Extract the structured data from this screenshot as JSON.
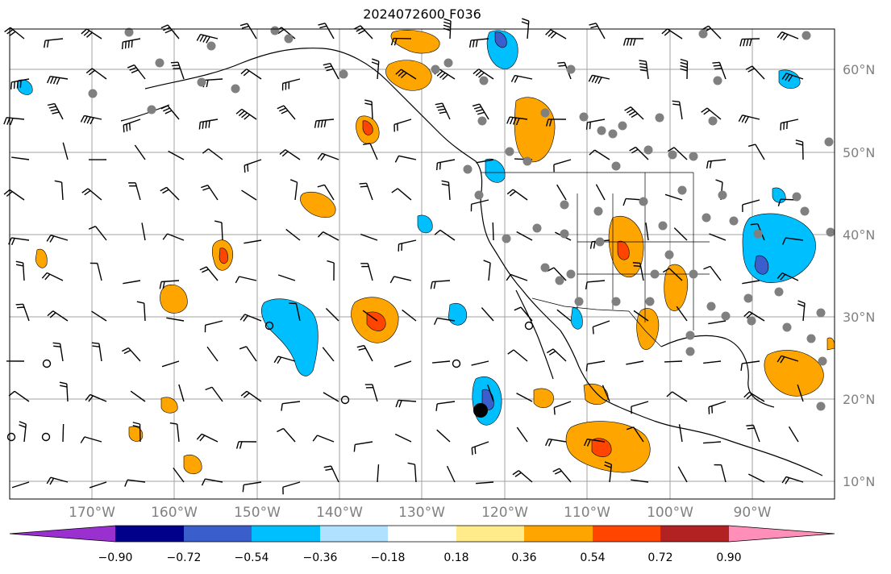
{
  "title": "2024072600 F036",
  "map": {
    "lon_range": [
      -180,
      -80
    ],
    "lat_range": [
      7,
      65
    ],
    "lat_labels": [
      "60°N",
      "50°N",
      "40°N",
      "30°N",
      "20°N",
      "10°N"
    ],
    "lat_values": [
      60,
      50,
      40,
      30,
      20,
      10
    ],
    "lon_labels": [
      "170°W",
      "160°W",
      "150°W",
      "140°W",
      "130°W",
      "120°W",
      "110°W",
      "100°W",
      "90°W"
    ],
    "lon_values": [
      -170,
      -160,
      -150,
      -140,
      -130,
      -120,
      -110,
      -100,
      -90
    ],
    "gridlines": true
  },
  "colorbar": {
    "ticks": [
      "−0.90",
      "−0.72",
      "−0.54",
      "−0.36",
      "−0.18",
      "0.18",
      "0.36",
      "0.54",
      "0.72",
      "0.90"
    ],
    "colors": [
      "#9b30d0",
      "#00008b",
      "#3a5fcd",
      "#00bfff",
      "#b0e2ff",
      "#ffffff",
      "#ffeb8a",
      "#ffa500",
      "#ff4500",
      "#b22222",
      "#ff8fb8"
    ],
    "extend": "both"
  },
  "colors": {
    "land_edge": "#000000",
    "grid": "#a0a0a0",
    "station_dot": "#808080"
  }
}
